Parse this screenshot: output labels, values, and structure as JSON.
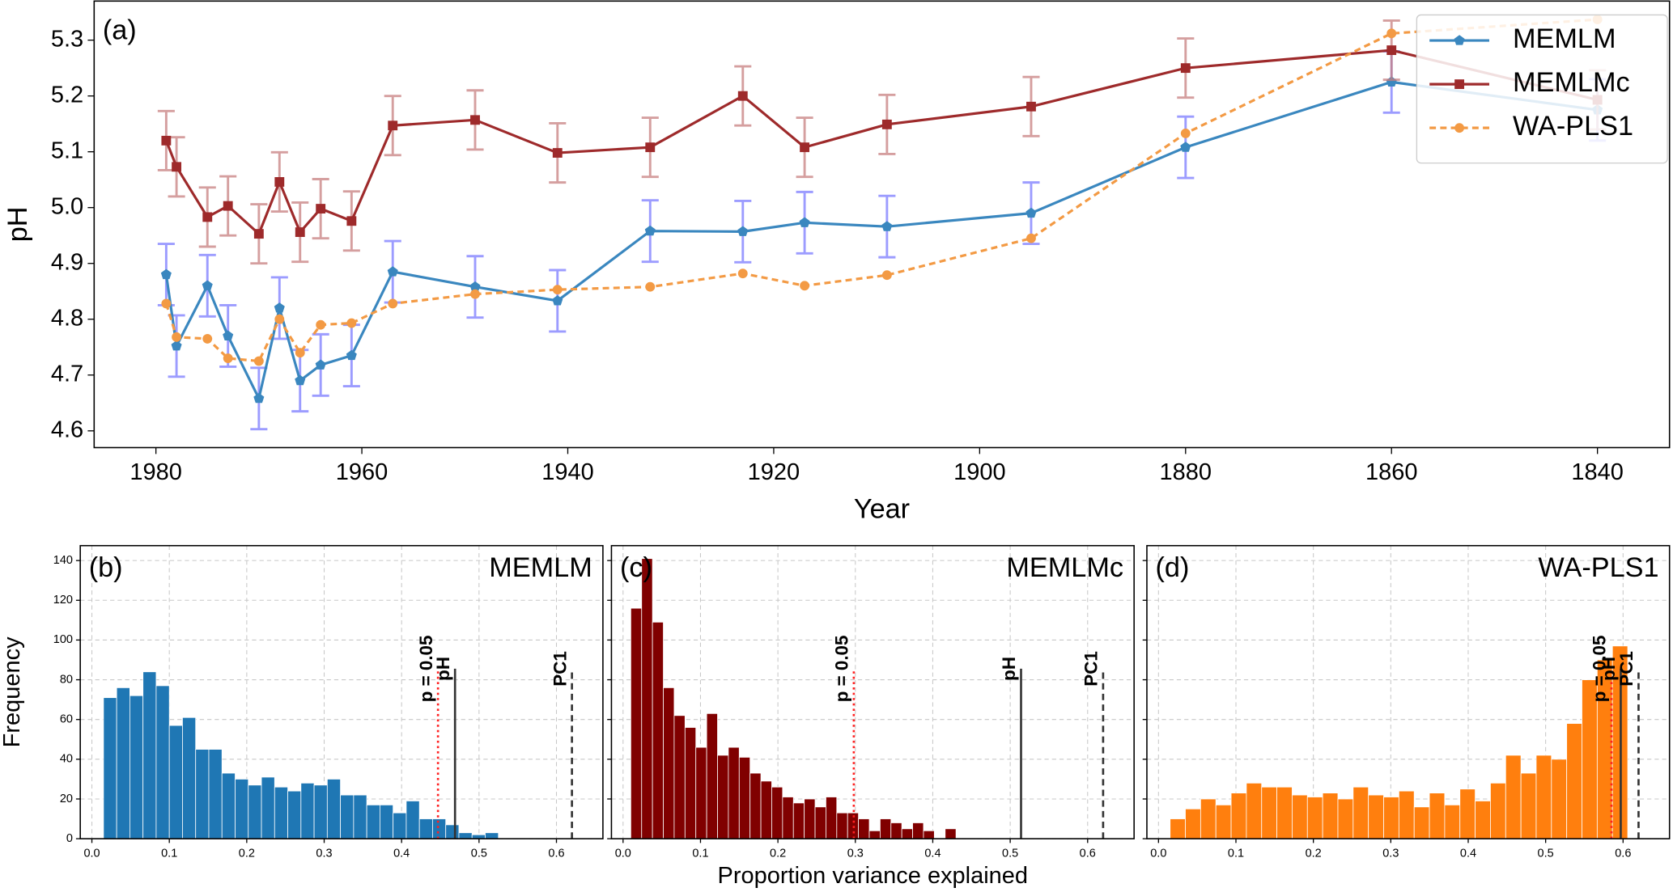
{
  "chart_data": [
    {
      "type": "line",
      "annotation": "(a)",
      "xlabel": "Year",
      "ylabel": "pH",
      "x": [
        1979,
        1978,
        1975,
        1973,
        1970,
        1968,
        1966,
        1964,
        1961,
        1957,
        1949,
        1941,
        1932,
        1923,
        1917,
        1909,
        1895,
        1880,
        1860,
        1840
      ],
      "xlim": [
        1986,
        1833
      ],
      "xticks": [
        1980,
        1960,
        1940,
        1920,
        1900,
        1880,
        1860,
        1840
      ],
      "ylim": [
        4.57,
        5.37
      ],
      "yticks": [
        4.6,
        4.7,
        4.8,
        4.9,
        {
          "value": 5,
          "label": "5.0"
        },
        5.1,
        5.2,
        5.3
      ],
      "legend": "upper right",
      "grid": false,
      "series": [
        {
          "name": "MEMLM",
          "color": "#3a87bf",
          "marker": "pentagon",
          "linestyle": "solid",
          "errcolor": "#7b7bff",
          "values": [
            4.88,
            4.752,
            4.86,
            4.77,
            4.658,
            4.82,
            4.69,
            4.718,
            4.735,
            4.885,
            4.858,
            4.833,
            4.958,
            4.957,
            4.973,
            4.966,
            4.99,
            5.108,
            5.225,
            5.175
          ],
          "errors": [
            0.055,
            0.055,
            0.055,
            0.055,
            0.055,
            0.055,
            0.055,
            0.055,
            0.055,
            0.055,
            0.055,
            0.055,
            0.055,
            0.055,
            0.055,
            0.055,
            0.055,
            0.055,
            0.055,
            0.055
          ]
        },
        {
          "name": "MEMLMc",
          "color": "#9e2a2b",
          "marker": "square",
          "linestyle": "solid",
          "errcolor": "#c77f80",
          "values": [
            5.12,
            5.073,
            4.983,
            5.003,
            4.953,
            5.046,
            4.956,
            4.998,
            4.976,
            5.147,
            5.157,
            5.098,
            5.108,
            5.2,
            5.108,
            5.149,
            5.181,
            5.25,
            5.282,
            5.193
          ],
          "errors": [
            0.053,
            0.053,
            0.053,
            0.053,
            0.053,
            0.053,
            0.053,
            0.053,
            0.053,
            0.053,
            0.053,
            0.053,
            0.053,
            0.053,
            0.053,
            0.053,
            0.053,
            0.053,
            0.053,
            0.053
          ]
        },
        {
          "name": "WA-PLS1",
          "color": "#f39a44",
          "marker": "circle",
          "linestyle": "dashed",
          "values": [
            4.828,
            4.768,
            4.765,
            4.73,
            4.725,
            4.8,
            4.74,
            4.79,
            4.793,
            4.828,
            4.845,
            4.853,
            4.858,
            4.882,
            4.86,
            4.879,
            4.945,
            5.133,
            5.312,
            5.337
          ]
        }
      ]
    },
    {
      "type": "histogram",
      "annotation": "(b)",
      "title": "MEMLM",
      "ylabel": "Frequency",
      "color": "#1f77b4",
      "grid": true,
      "bins": [
        0.015,
        0.032,
        0.049,
        0.066,
        0.083,
        0.1,
        0.117,
        0.134,
        0.151,
        0.168,
        0.185,
        0.202,
        0.219,
        0.236,
        0.253,
        0.27,
        0.287,
        0.304,
        0.321,
        0.338,
        0.355,
        0.372,
        0.389,
        0.406,
        0.423,
        0.44,
        0.457,
        0.474,
        0.491,
        0.508,
        0.525
      ],
      "values": [
        71,
        76,
        72,
        84,
        77,
        57,
        61,
        45,
        45,
        33,
        30,
        27,
        31,
        26,
        24,
        28,
        27,
        30,
        22,
        22,
        17,
        17,
        13,
        19,
        10,
        10,
        7,
        3,
        2,
        3
      ],
      "xlim": [
        -0.015,
        0.66
      ],
      "xticks": [
        {
          "value": 0,
          "label": "0.0"
        },
        0.1,
        0.2,
        0.3,
        0.4,
        0.5,
        0.6
      ],
      "ylim": [
        0,
        147.5
      ],
      "yticks": [
        0,
        20,
        40,
        60,
        80,
        100,
        120,
        140
      ],
      "vlines": [
        {
          "label": "p = 0.05",
          "value": 0.447,
          "color": "#ff2020",
          "style": "dotted"
        },
        {
          "label": "pH",
          "value": 0.469,
          "color": "#333333",
          "style": "solid"
        },
        {
          "label": "PC1",
          "value": 0.62,
          "color": "#333333",
          "style": "dashed"
        }
      ]
    },
    {
      "type": "histogram",
      "annotation": "(c)",
      "title": "MEMLMc",
      "xlabel": "Proportion variance explained",
      "color": "#800000",
      "grid": true,
      "bins": [
        0.01,
        0.024,
        0.038,
        0.052,
        0.066,
        0.08,
        0.094,
        0.108,
        0.122,
        0.136,
        0.15,
        0.164,
        0.178,
        0.192,
        0.206,
        0.22,
        0.234,
        0.248,
        0.262,
        0.276,
        0.29,
        0.304,
        0.318,
        0.332,
        0.346,
        0.36,
        0.374,
        0.388,
        0.402,
        0.416,
        0.43
      ],
      "values": [
        116,
        141,
        109,
        76,
        62,
        56,
        46,
        63,
        42,
        46,
        41,
        33,
        29,
        26,
        21,
        18,
        20,
        16,
        21,
        13,
        13,
        10,
        4,
        10,
        8,
        5,
        8,
        4,
        0,
        5
      ],
      "xlim": [
        -0.015,
        0.66
      ],
      "xticks": [
        {
          "value": 0,
          "label": "0.0"
        },
        0.1,
        0.2,
        0.3,
        0.4,
        0.5,
        0.6
      ],
      "ylim": [
        0,
        147.5
      ],
      "yticks": [
        0,
        20,
        40,
        60,
        80,
        100,
        120,
        140
      ],
      "vlines": [
        {
          "label": "p = 0.05",
          "value": 0.298,
          "color": "#ff2020",
          "style": "dotted"
        },
        {
          "label": "pH",
          "value": 0.514,
          "color": "#333333",
          "style": "solid"
        },
        {
          "label": "PC1",
          "value": 0.62,
          "color": "#333333",
          "style": "dashed"
        }
      ]
    },
    {
      "type": "histogram",
      "annotation": "(d)",
      "title": "WA-PLS1",
      "color": "#ff7f0e",
      "grid": true,
      "bins": [
        0.015,
        0.0347,
        0.0544,
        0.0741,
        0.0938,
        0.1135,
        0.1332,
        0.1529,
        0.1726,
        0.1923,
        0.212,
        0.2317,
        0.2514,
        0.2711,
        0.2908,
        0.3105,
        0.3302,
        0.3499,
        0.3696,
        0.3893,
        0.409,
        0.4287,
        0.4484,
        0.4681,
        0.4878,
        0.5075,
        0.5272,
        0.5469,
        0.5666,
        0.5863,
        0.606
      ],
      "values": [
        10,
        15,
        20,
        17,
        23,
        28,
        26,
        26,
        22,
        21,
        23,
        20,
        26,
        22,
        21,
        24,
        16,
        23,
        17,
        25,
        19,
        28,
        42,
        33,
        42,
        40,
        58,
        80,
        90,
        97
      ],
      "xlim": [
        -0.015,
        0.66
      ],
      "xticks": [
        {
          "value": 0,
          "label": "0.0"
        },
        0.1,
        0.2,
        0.3,
        0.4,
        0.5,
        0.6
      ],
      "ylim": [
        0,
        147.5
      ],
      "yticks": [
        0,
        20,
        40,
        60,
        80,
        100,
        120,
        140
      ],
      "vlines": [
        {
          "label": "p = 0.05",
          "value": 0.585,
          "color": "#ff2020",
          "style": "dotted"
        },
        {
          "label": "pH",
          "value": 0.597,
          "color": "#333333",
          "style": "solid"
        },
        {
          "label": "PC1",
          "value": 0.62,
          "color": "#333333",
          "style": "dashed"
        }
      ]
    }
  ]
}
